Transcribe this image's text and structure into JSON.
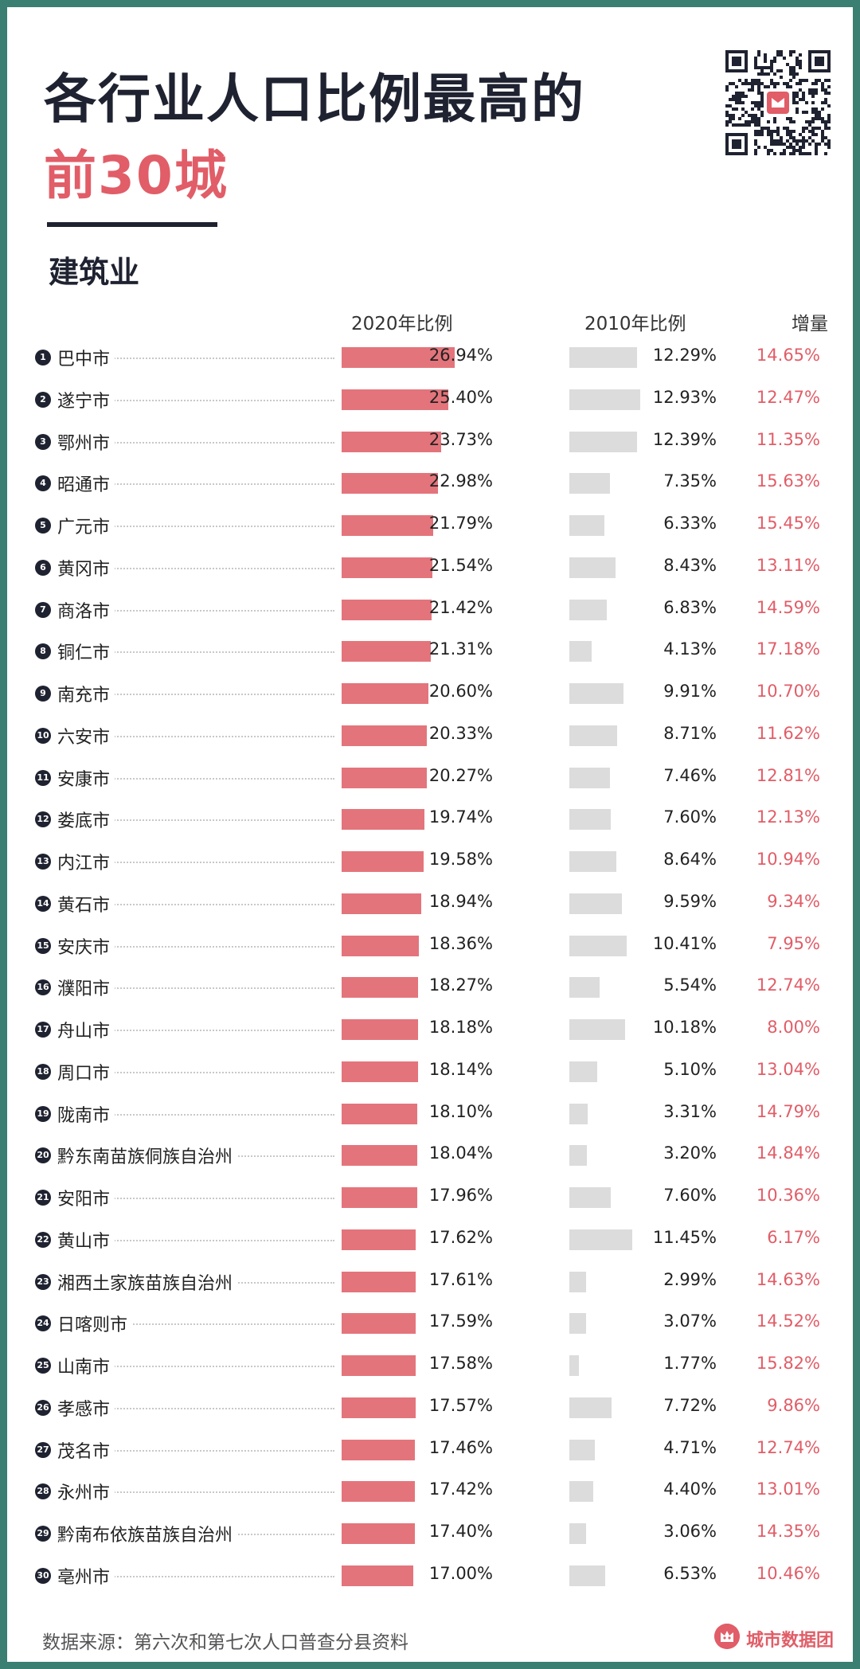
{
  "title": {
    "line1": "各行业人口比例最高的",
    "line2": "前30城",
    "subtitle": "建筑业"
  },
  "columns": {
    "c2020": "2020年比例",
    "c2010": "2010年比例",
    "increase": "增量"
  },
  "footer": {
    "source": "数据来源：第六次和第七次人口普查分县资料",
    "brand": "城市数据团"
  },
  "colors": {
    "accent": "#e15d67",
    "bar_2020": "#e4747b",
    "bar_2010": "#dcdcdc",
    "frame": "#3a7f72"
  },
  "icons": {
    "qr": "qr-code-icon",
    "brand": "city-data-group-logo-icon"
  },
  "chart_data": {
    "type": "table",
    "title": "建筑业",
    "xlabel": "",
    "ylabel": "",
    "categories": [
      "巴中市",
      "遂宁市",
      "鄂州市",
      "昭通市",
      "广元市",
      "黄冈市",
      "商洛市",
      "铜仁市",
      "南充市",
      "六安市",
      "安康市",
      "娄底市",
      "内江市",
      "黄石市",
      "安庆市",
      "濮阳市",
      "舟山市",
      "周口市",
      "陇南市",
      "黔东南苗族侗族自治州",
      "安阳市",
      "黄山市",
      "湘西土家族苗族自治州",
      "日喀则市",
      "山南市",
      "孝感市",
      "茂名市",
      "永州市",
      "黔南布依族苗族自治州",
      "亳州市"
    ],
    "series": [
      {
        "name": "2020年比例",
        "values": [
          26.94,
          25.4,
          23.73,
          22.98,
          21.79,
          21.54,
          21.42,
          21.31,
          20.6,
          20.33,
          20.27,
          19.74,
          19.58,
          18.94,
          18.36,
          18.27,
          18.18,
          18.14,
          18.1,
          18.04,
          17.96,
          17.62,
          17.61,
          17.59,
          17.58,
          17.57,
          17.46,
          17.42,
          17.4,
          17.0
        ]
      },
      {
        "name": "2010年比例",
        "values": [
          12.29,
          12.93,
          12.39,
          7.35,
          6.33,
          8.43,
          6.83,
          4.13,
          9.91,
          8.71,
          7.46,
          7.6,
          8.64,
          9.59,
          10.41,
          5.54,
          10.18,
          5.1,
          3.31,
          3.2,
          7.6,
          11.45,
          2.99,
          3.07,
          1.77,
          7.72,
          4.71,
          4.4,
          3.06,
          6.53
        ]
      },
      {
        "name": "增量",
        "values": [
          14.65,
          12.47,
          11.35,
          15.63,
          15.45,
          13.11,
          14.59,
          17.18,
          10.7,
          11.62,
          12.81,
          12.13,
          10.94,
          9.34,
          7.95,
          12.74,
          8.0,
          13.04,
          14.79,
          14.84,
          10.36,
          6.17,
          14.63,
          14.52,
          15.82,
          9.86,
          12.74,
          13.01,
          14.35,
          10.46
        ]
      }
    ],
    "display": {
      "v2020": [
        "26.94%",
        "25.40%",
        "23.73%",
        "22.98%",
        "21.79%",
        "21.54%",
        "21.42%",
        "21.31%",
        "20.60%",
        "20.33%",
        "20.27%",
        "19.74%",
        "19.58%",
        "18.94%",
        "18.36%",
        "18.27%",
        "18.18%",
        "18.14%",
        "18.10%",
        "18.04%",
        "17.96%",
        "17.62%",
        "17.61%",
        "17.59%",
        "17.58%",
        "17.57%",
        "17.46%",
        "17.42%",
        "17.40%",
        "17.00%"
      ],
      "v2010": [
        "12.29%",
        "12.93%",
        "12.39%",
        "7.35%",
        "6.33%",
        "8.43%",
        "6.83%",
        "4.13%",
        "9.91%",
        "8.71%",
        "7.46%",
        "7.60%",
        "8.64%",
        "9.59%",
        "10.41%",
        "5.54%",
        "10.18%",
        "5.10%",
        "3.31%",
        "3.20%",
        "7.60%",
        "11.45%",
        "2.99%",
        "3.07%",
        "1.77%",
        "7.72%",
        "4.71%",
        "4.40%",
        "3.06%",
        "6.53%"
      ],
      "inc": [
        "14.65%",
        "12.47%",
        "11.35%",
        "15.63%",
        "15.45%",
        "13.11%",
        "14.59%",
        "17.18%",
        "10.70%",
        "11.62%",
        "12.81%",
        "12.13%",
        "10.94%",
        "9.34%",
        "7.95%",
        "12.74%",
        "8.00%",
        "13.04%",
        "14.79%",
        "14.84%",
        "10.36%",
        "6.17%",
        "14.63%",
        "14.52%",
        "15.82%",
        "9.86%",
        "12.74%",
        "13.01%",
        "14.35%",
        "10.46%"
      ]
    }
  }
}
